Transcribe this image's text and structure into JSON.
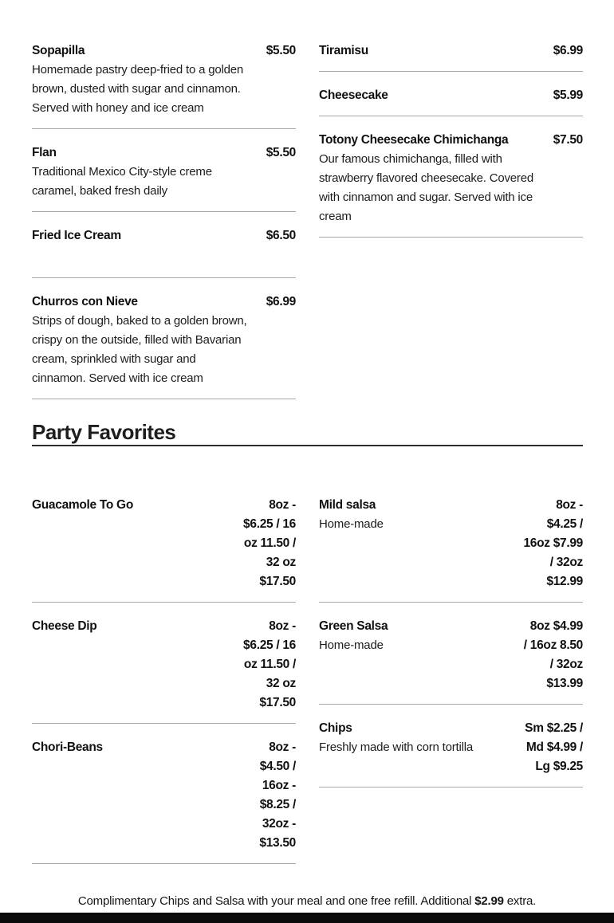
{
  "page": {
    "party_heading": "Party Favorites",
    "footer": {
      "prefix": "Complimentary Chips and Salsa with your meal and one free refill. Additional ",
      "highlight": "$2.99",
      "suffix": " extra."
    },
    "colors": {
      "background": "#ffffff",
      "text": "#161616",
      "divider": "#a8a8a8",
      "heading_rule": "#2e2e2e",
      "footer_bar": "#0b0b0b"
    }
  },
  "desserts": {
    "left": [
      {
        "title": "Sopapilla",
        "price": "$5.50",
        "desc": "Homemade pastry deep-fried to a golden\nbrown, dusted with sugar and cinnamon.\nServed with honey and ice cream"
      },
      {
        "title": "Flan",
        "price": "$5.50",
        "desc": "Traditional Mexico City-style creme\ncaramel, baked fresh daily"
      },
      {
        "title": "Fried Ice Cream",
        "price": "$6.50",
        "desc": ""
      },
      {
        "title": "Churros con Nieve",
        "price": "$6.99",
        "desc": "Strips of dough, baked to a golden brown,\ncrispy on the outside, filled with Bavarian\ncream, sprinkled with sugar and\ncinnamon. Served with ice cream"
      }
    ],
    "right": [
      {
        "title": "Tiramisu",
        "price": "$6.99",
        "desc": ""
      },
      {
        "title": "Cheesecake",
        "price": "$5.99",
        "desc": ""
      },
      {
        "title": "Totony Cheesecake Chimichanga",
        "price": "$7.50",
        "desc": "Our famous chimichanga, filled with\nstrawberry flavored cheesecake. Covered\nwith cinnamon and sugar. Served with ice\ncream"
      }
    ]
  },
  "party": {
    "left": [
      {
        "title": "Guacamole To Go",
        "desc": "",
        "price": "8oz -\n$6.25 / 16\noz 11.50 /\n32 oz\n$17.50"
      },
      {
        "title": "Cheese Dip",
        "desc": "",
        "price": "8oz -\n$6.25 / 16\noz 11.50 /\n32 oz\n$17.50"
      },
      {
        "title": "Chori-Beans",
        "desc": "",
        "price": "8oz -\n$4.50 /\n16oz -\n$8.25 /\n32oz -\n$13.50"
      }
    ],
    "right": [
      {
        "title": "Mild salsa",
        "desc": "Home-made",
        "price": "8oz -\n$4.25 /\n16oz $7.99\n/ 32oz\n$12.99"
      },
      {
        "title": "Green Salsa",
        "desc": "Home-made",
        "price": "8oz $4.99\n/ 16oz 8.50\n/ 32oz\n$13.99"
      },
      {
        "title": "Chips",
        "desc": "Freshly made with corn tortilla",
        "price": "Sm $2.25 /\nMd $4.99 /\nLg $9.25"
      }
    ]
  }
}
